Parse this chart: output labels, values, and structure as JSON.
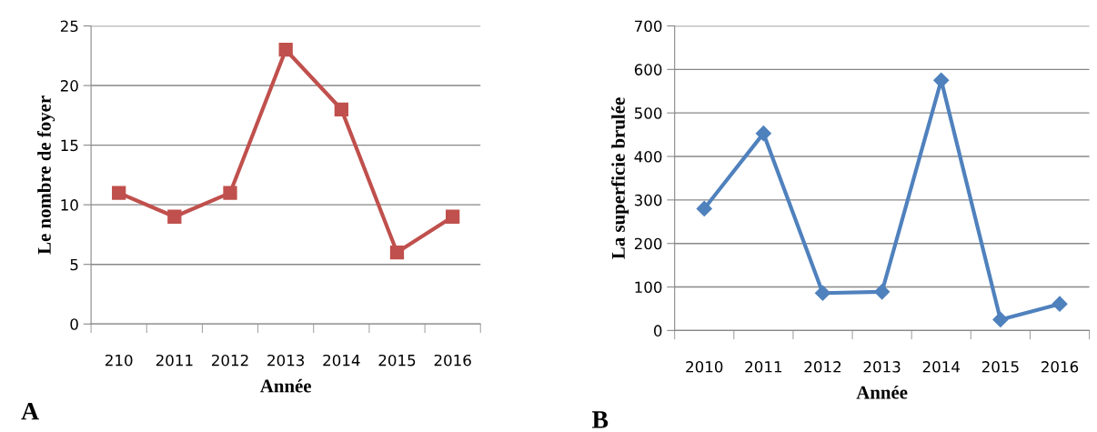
{
  "chart_data": [
    {
      "type": "line",
      "categories": [
        "210",
        "2011",
        "2012",
        "2013",
        "2014",
        "2015",
        "2016"
      ],
      "series": [
        {
          "color": "#c0504d",
          "values": [
            11,
            9,
            11,
            23,
            18,
            6,
            9
          ]
        }
      ],
      "ylim": [
        0,
        25
      ],
      "yticks": [
        0,
        5,
        10,
        15,
        20,
        25
      ],
      "xlabel": "Année",
      "ylabel": "Le nombre de foyer",
      "grid": "y",
      "marker": "square",
      "line_style": "solid",
      "legend": false,
      "annotations": [
        "A"
      ]
    },
    {
      "type": "line",
      "categories": [
        "2010",
        "2011",
        "2012",
        "2013",
        "2014",
        "2015",
        "2016"
      ],
      "series": [
        {
          "color": "#4f81bd",
          "values": [
            280,
            453,
            86,
            89,
            575,
            25,
            61
          ]
        }
      ],
      "ylim": [
        0,
        700
      ],
      "yticks": [
        0,
        100,
        200,
        300,
        400,
        500,
        600,
        700
      ],
      "xlabel": "Année",
      "ylabel": "La superficie brulée",
      "grid": "y",
      "marker": "diamond",
      "line_style": "solid",
      "legend": false,
      "annotations": [
        "B"
      ]
    }
  ]
}
